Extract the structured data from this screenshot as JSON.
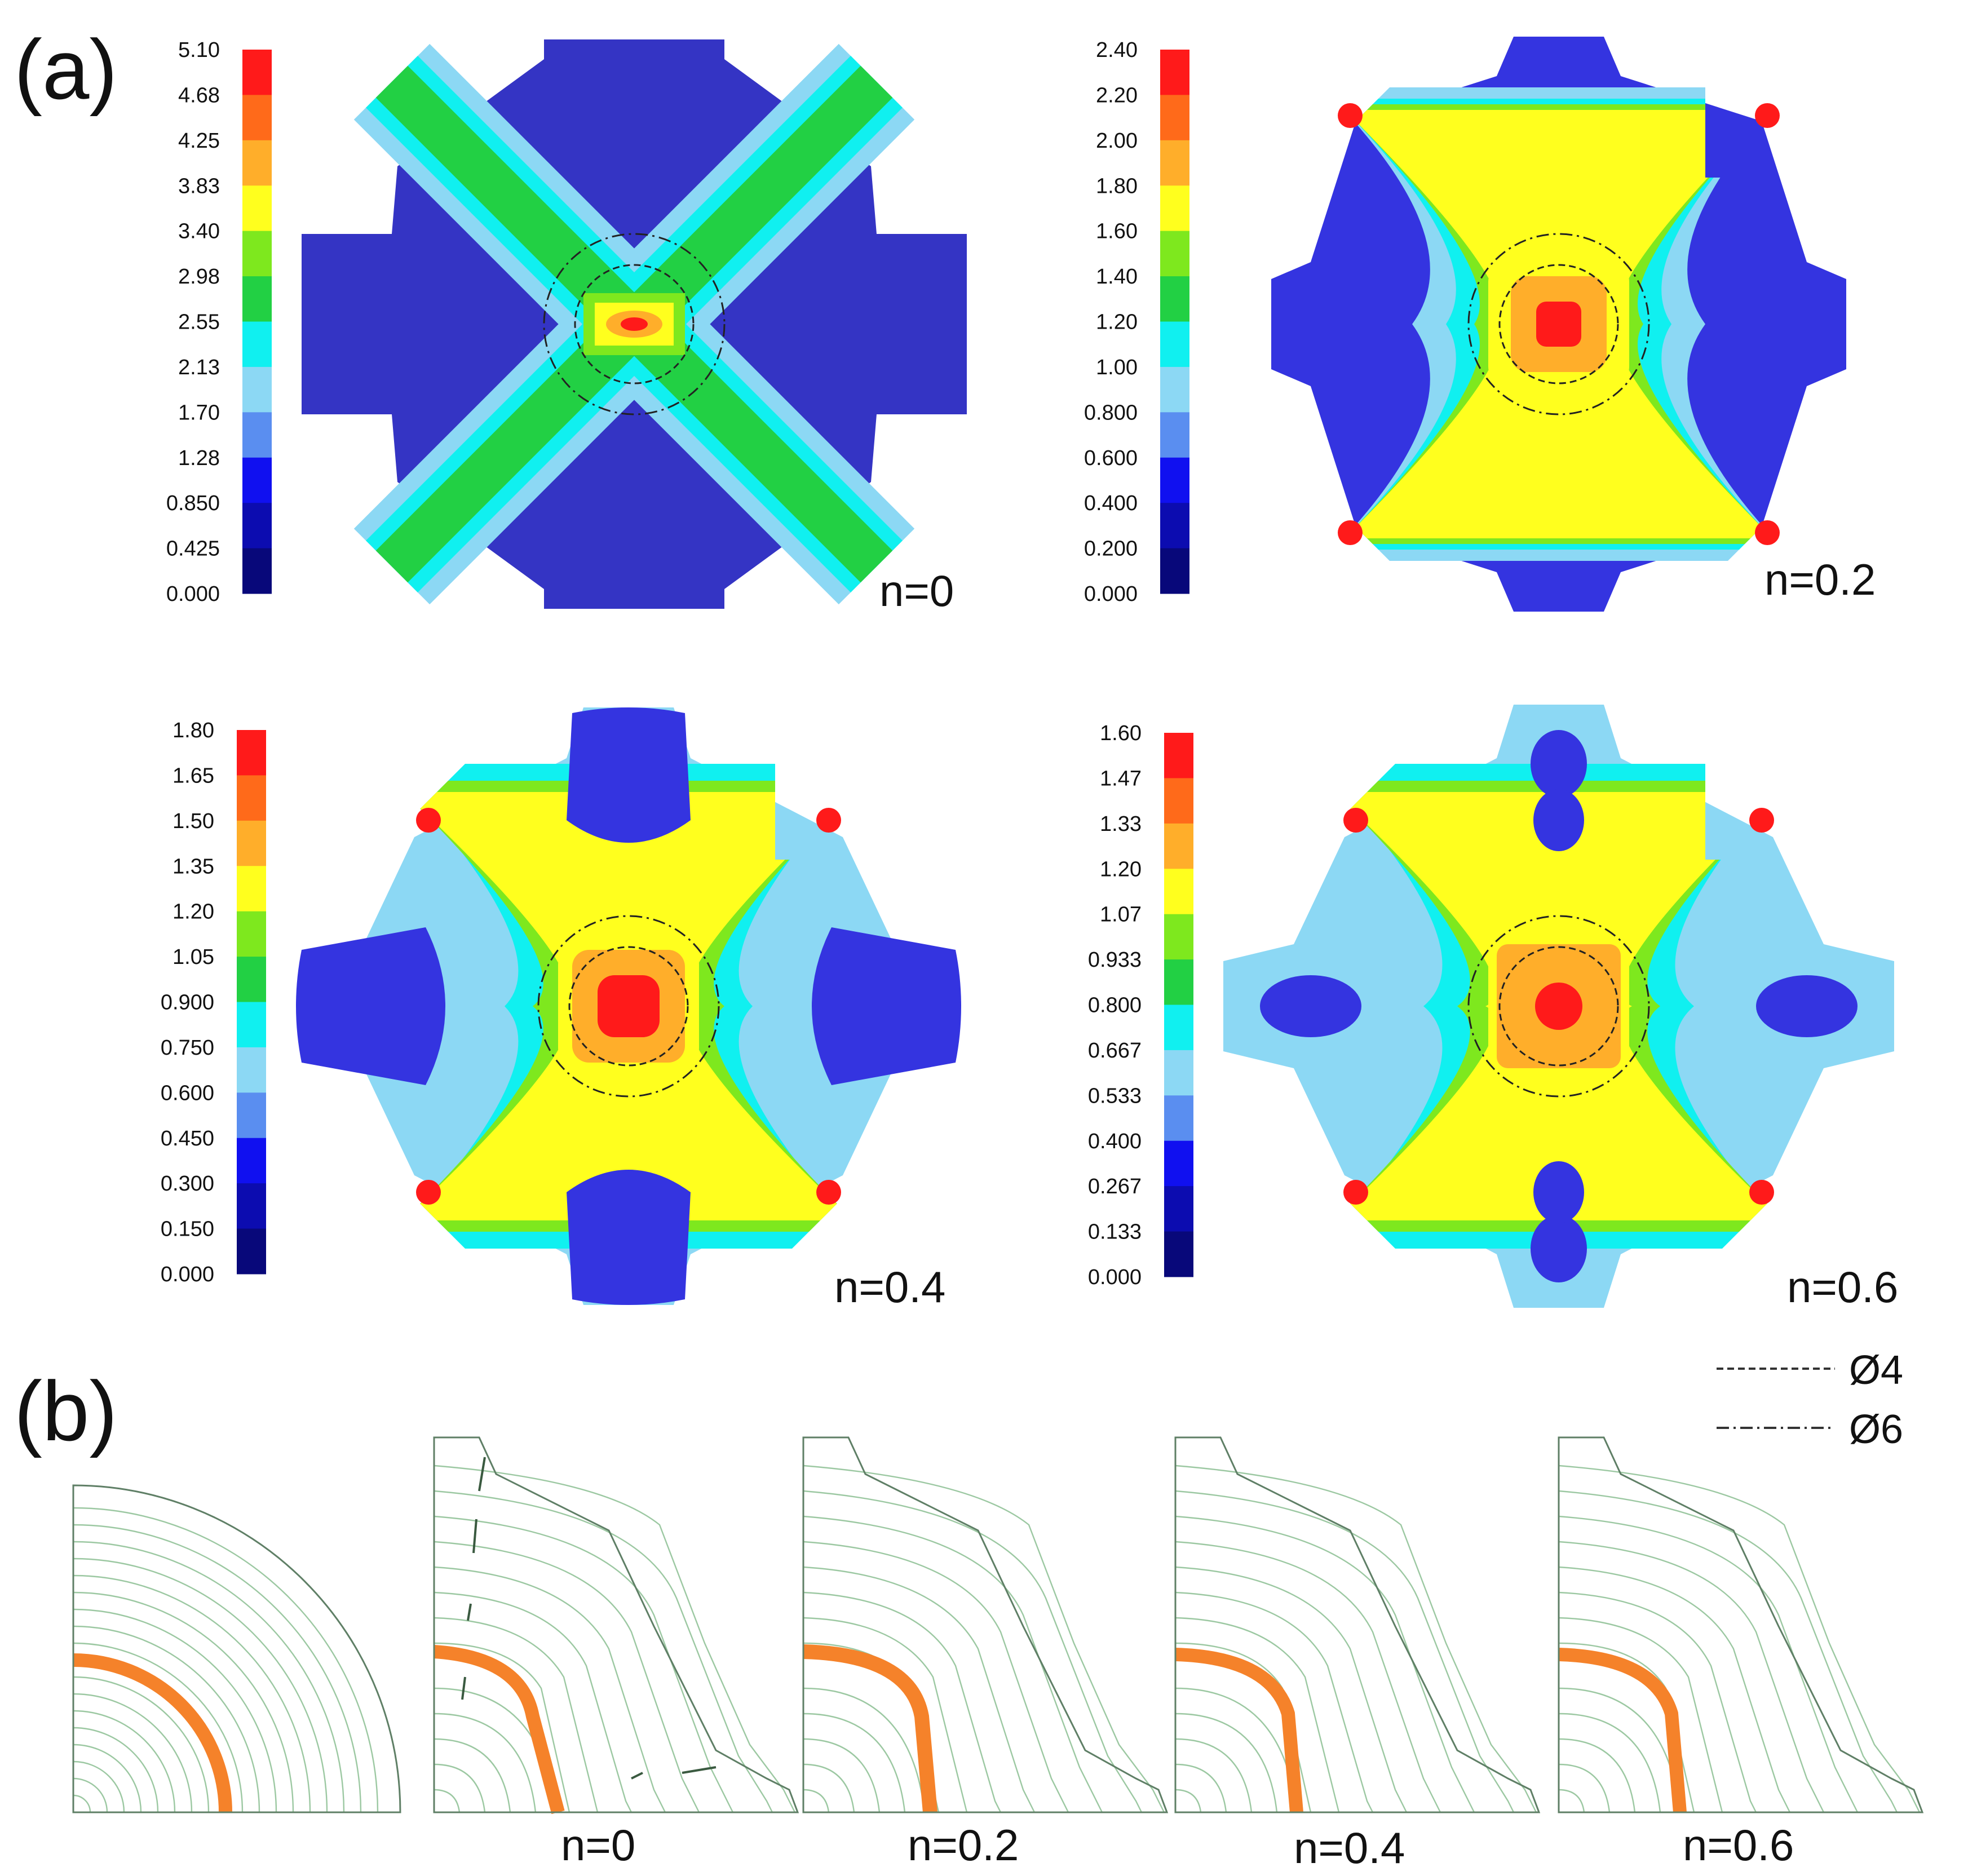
{
  "panel_a": {
    "label": "(a)",
    "scale_colors": [
      "#ff1a1a",
      "#ff6a1a",
      "#ffae2a",
      "#ffff1e",
      "#7ee81e",
      "#22d044",
      "#10f0f0",
      "#8cd8f4",
      "#5a8ef0",
      "#1010f0",
      "#0c0cb0",
      "#08087a"
    ],
    "plots": [
      {
        "id": "n0",
        "caption": "n=0",
        "scale": [
          "5.10",
          "4.68",
          "4.25",
          "3.83",
          "3.40",
          "2.98",
          "2.55",
          "2.13",
          "1.70",
          "1.28",
          "0.850",
          "0.425",
          "0.000"
        ]
      },
      {
        "id": "n02",
        "caption": "n=0.2",
        "scale": [
          "2.40",
          "2.20",
          "2.00",
          "1.80",
          "1.60",
          "1.40",
          "1.20",
          "1.00",
          "0.800",
          "0.600",
          "0.400",
          "0.200",
          "0.000"
        ]
      },
      {
        "id": "n04",
        "caption": "n=0.4",
        "scale": [
          "1.80",
          "1.65",
          "1.50",
          "1.35",
          "1.20",
          "1.05",
          "0.900",
          "0.750",
          "0.600",
          "0.450",
          "0.300",
          "0.150",
          "0.000"
        ]
      },
      {
        "id": "n06",
        "caption": "n=0.6",
        "scale": [
          "1.60",
          "1.47",
          "1.33",
          "1.20",
          "1.07",
          "0.933",
          "0.800",
          "0.667",
          "0.533",
          "0.400",
          "0.267",
          "0.133",
          "0.000"
        ]
      }
    ],
    "legend": {
      "dashed_label": "Ø4",
      "dashdot_label": "Ø6"
    }
  },
  "panel_b": {
    "label": "(b)",
    "sections": [
      {
        "id": "initial",
        "caption": ""
      },
      {
        "id": "n0",
        "caption": "n=0"
      },
      {
        "id": "n02",
        "caption": "n=0.2"
      },
      {
        "id": "n04",
        "caption": "n=0.4"
      },
      {
        "id": "n06",
        "caption": "n=0.6"
      }
    ]
  }
}
